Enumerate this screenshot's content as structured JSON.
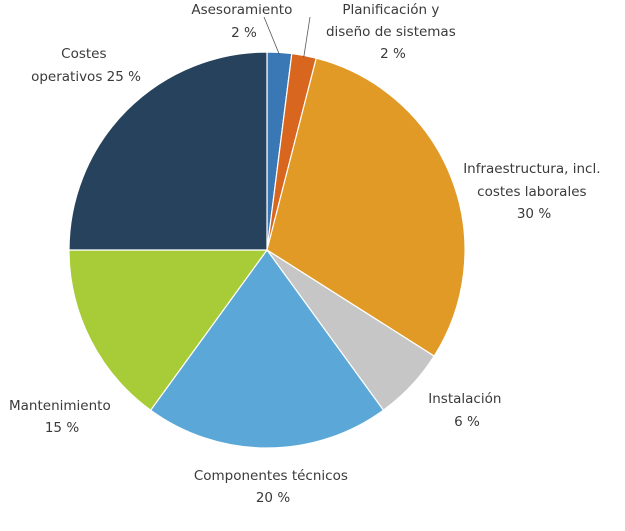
{
  "chart_data": {
    "type": "pie",
    "slices": [
      {
        "label_lines": [
          "Asesoramiento",
          "2 %"
        ],
        "value": 2,
        "color": "#3a78b5"
      },
      {
        "label_lines": [
          "Planificación y",
          "diseño de sistemas",
          "2 %"
        ],
        "value": 2,
        "color": "#d9661e"
      },
      {
        "label_lines": [
          "Infraestructura, incl.",
          "costes laborales",
          "30 %"
        ],
        "value": 30,
        "color": "#e09a25"
      },
      {
        "label_lines": [
          "Instalación",
          "6 %"
        ],
        "value": 6,
        "color": "#c6c6c6"
      },
      {
        "label_lines": [
          "Componentes técnicos",
          "20 %"
        ],
        "value": 20,
        "color": "#5ba8d8"
      },
      {
        "label_lines": [
          "Mantenimiento",
          "15 %"
        ],
        "value": 15,
        "color": "#a8cc37"
      },
      {
        "label_lines": [
          "Costes",
          "operativos  25 %"
        ],
        "value": 25,
        "color": "#27425c"
      }
    ]
  }
}
